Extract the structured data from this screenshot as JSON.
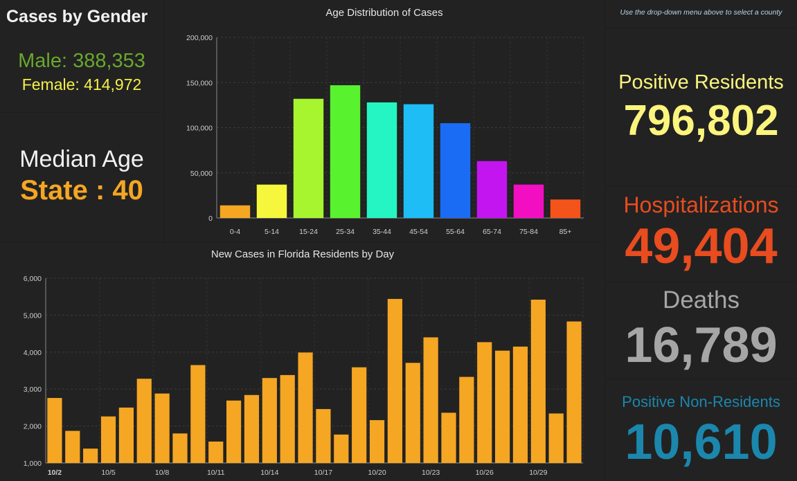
{
  "gender": {
    "title": "Cases by Gender",
    "male": "Male: 388,353",
    "female": "Female: 414,972"
  },
  "median": {
    "label": "Median Age",
    "value": "State : 40"
  },
  "note": "Use the drop-down menu above to select a county",
  "kpis": {
    "positive_residents": {
      "label": "Positive Residents",
      "value": "796,802",
      "color": "#fbf57e"
    },
    "hospitalizations": {
      "label": "Hospitalizations",
      "value": "49,404",
      "color": "#e84c1f"
    },
    "deaths": {
      "label": "Deaths",
      "value": "16,789",
      "color": "#a6a6a6"
    },
    "non_residents": {
      "label": "Positive Non-Residents",
      "value": "10,610",
      "color": "#1b87ad"
    }
  },
  "chart_data": [
    {
      "type": "bar",
      "title": "Age Distribution of Cases",
      "categories": [
        "0-4",
        "5-14",
        "15-24",
        "25-34",
        "35-44",
        "45-54",
        "55-64",
        "65-74",
        "75-84",
        "85+"
      ],
      "values": [
        14000,
        37000,
        132000,
        147000,
        128000,
        126000,
        105000,
        63000,
        37000,
        20500
      ],
      "colors": [
        "#f5a623",
        "#f6f63c",
        "#a6f52f",
        "#59f22f",
        "#25f5c2",
        "#1ebdf5",
        "#1a6cf5",
        "#c215f0",
        "#f20fc2",
        "#f5531c"
      ],
      "ylim": [
        0,
        200000
      ],
      "yticks": [
        "0",
        "50,000",
        "100,000",
        "150,000",
        "200,000"
      ],
      "ytick_values": [
        0,
        50000,
        100000,
        150000,
        200000
      ],
      "grid": true
    },
    {
      "type": "bar",
      "title": "New Cases in Florida Residents by Day",
      "categories": [
        "10/2",
        "10/3",
        "10/4",
        "10/5",
        "10/6",
        "10/7",
        "10/8",
        "10/9",
        "10/10",
        "10/11",
        "10/12",
        "10/13",
        "10/14",
        "10/15",
        "10/16",
        "10/17",
        "10/18",
        "10/19",
        "10/20",
        "10/21",
        "10/22",
        "10/23",
        "10/24",
        "10/25",
        "10/26",
        "10/27",
        "10/28",
        "10/29",
        "10/30",
        "10/31"
      ],
      "values": [
        2760,
        1870,
        1390,
        2260,
        2500,
        3280,
        2880,
        1800,
        3650,
        1580,
        2690,
        2840,
        3300,
        3380,
        3990,
        2460,
        1770,
        3590,
        2160,
        5440,
        3710,
        4400,
        2360,
        3330,
        4270,
        4040,
        4150,
        5420,
        2340,
        4830
      ],
      "xtick_labels": [
        "10/2",
        "10/5",
        "10/8",
        "10/11",
        "10/14",
        "10/17",
        "10/20",
        "10/23",
        "10/26",
        "10/29"
      ],
      "xtick_indices": [
        0,
        3,
        6,
        9,
        12,
        15,
        18,
        21,
        24,
        27
      ],
      "ylim": [
        1000,
        6000
      ],
      "yticks": [
        "1,000",
        "2,000",
        "3,000",
        "4,000",
        "5,000",
        "6,000"
      ],
      "ytick_values": [
        1000,
        2000,
        3000,
        4000,
        5000,
        6000
      ],
      "bar_color": "#f5a623",
      "grid": true
    }
  ]
}
